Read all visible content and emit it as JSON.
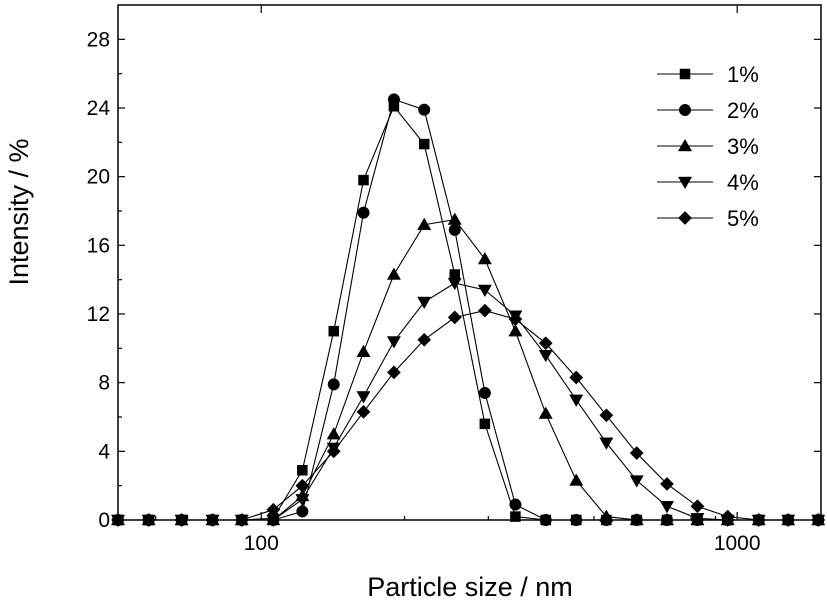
{
  "chart_data": {
    "type": "line",
    "xlabel": "Particle size / nm",
    "ylabel": "Intensity / %",
    "xscale": "log",
    "xlim": [
      50,
      1500
    ],
    "ylim": [
      0,
      30
    ],
    "xticks": [
      100,
      1000
    ],
    "xtick_labels": [
      "100",
      "1000"
    ],
    "yticks": [
      0,
      4,
      8,
      12,
      16,
      20,
      24,
      28
    ],
    "ytick_labels": [
      "0",
      "4",
      "8",
      "12",
      "16",
      "20",
      "24",
      "28"
    ],
    "grid": false,
    "legend_position": "top-right",
    "series": [
      {
        "name": "1%",
        "marker": "square",
        "x": [
          50,
          58,
          68,
          79,
          91,
          106,
          122,
          142,
          164,
          190,
          220,
          255,
          295,
          342,
          396,
          459,
          531,
          615,
          712,
          825,
          955,
          1110,
          1280,
          1480
        ],
        "y": [
          0,
          0,
          0,
          0,
          0,
          0.1,
          2.9,
          11,
          19.8,
          24.1,
          21.9,
          14.3,
          5.6,
          0.2,
          0,
          0,
          0,
          0,
          0,
          0,
          0,
          0,
          0,
          0
        ]
      },
      {
        "name": "2%",
        "marker": "circle",
        "x": [
          50,
          58,
          68,
          79,
          91,
          106,
          122,
          142,
          164,
          190,
          220,
          255,
          295,
          342,
          396,
          459,
          531,
          615,
          712,
          825,
          955,
          1110,
          1280,
          1480
        ],
        "y": [
          0,
          0,
          0,
          0,
          0,
          0,
          0.5,
          7.9,
          17.9,
          24.5,
          23.9,
          16.9,
          7.4,
          0.9,
          0,
          0,
          0,
          0,
          0,
          0,
          0,
          0,
          0,
          0
        ]
      },
      {
        "name": "3%",
        "marker": "triangle-up",
        "x": [
          50,
          58,
          68,
          79,
          91,
          106,
          122,
          142,
          164,
          190,
          220,
          255,
          295,
          342,
          396,
          459,
          531,
          615,
          712,
          825,
          955,
          1110,
          1280,
          1480
        ],
        "y": [
          0,
          0,
          0,
          0,
          0,
          0,
          1.4,
          5,
          9.8,
          14.3,
          17.2,
          17.5,
          15.2,
          11,
          6.2,
          2.3,
          0.2,
          0,
          0,
          0,
          0,
          0,
          0,
          0
        ]
      },
      {
        "name": "4%",
        "marker": "triangle-down",
        "x": [
          50,
          58,
          68,
          79,
          91,
          106,
          122,
          142,
          164,
          190,
          220,
          255,
          295,
          342,
          396,
          459,
          531,
          615,
          712,
          825,
          955,
          1110,
          1280,
          1480
        ],
        "y": [
          0,
          0,
          0,
          0,
          0,
          0,
          1.2,
          4.2,
          7.2,
          10.4,
          12.7,
          13.8,
          13.4,
          11.9,
          9.6,
          7,
          4.5,
          2.3,
          0.8,
          0.1,
          0,
          0,
          0,
          0
        ]
      },
      {
        "name": "5%",
        "marker": "diamond",
        "x": [
          50,
          58,
          68,
          79,
          91,
          106,
          122,
          142,
          164,
          190,
          220,
          255,
          295,
          342,
          396,
          459,
          531,
          615,
          712,
          825,
          955,
          1110,
          1280,
          1480
        ],
        "y": [
          0,
          0,
          0,
          0,
          0,
          0.6,
          2,
          4,
          6.3,
          8.6,
          10.5,
          11.8,
          12.2,
          11.7,
          10.3,
          8.3,
          6.1,
          3.9,
          2.1,
          0.8,
          0.2,
          0,
          0,
          0
        ]
      }
    ]
  }
}
